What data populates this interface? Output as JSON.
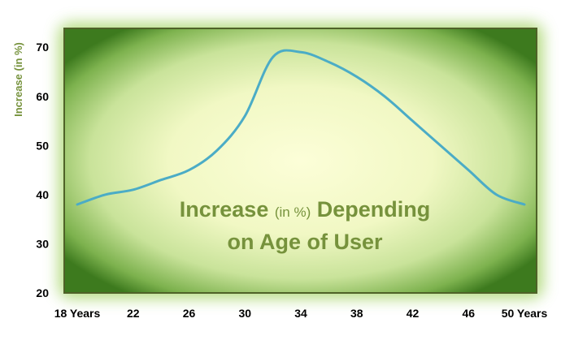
{
  "chart_data": {
    "type": "line",
    "title_parts": [
      "Increase ",
      "(in %)",
      " Depending",
      "on Age of User"
    ],
    "ylabel": "Increase (in %)",
    "xlabel": "",
    "ylim": [
      20,
      74
    ],
    "yticks": [
      20,
      30,
      40,
      50,
      60,
      70
    ],
    "xlim": [
      18,
      50
    ],
    "xticks": [
      {
        "x": 18,
        "label": "18 Years"
      },
      {
        "x": 22,
        "label": "22"
      },
      {
        "x": 26,
        "label": "26"
      },
      {
        "x": 30,
        "label": "30"
      },
      {
        "x": 34,
        "label": "34"
      },
      {
        "x": 38,
        "label": "38"
      },
      {
        "x": 42,
        "label": "42"
      },
      {
        "x": 46,
        "label": "46"
      },
      {
        "x": 50,
        "label": "50 Years"
      }
    ],
    "grid": false,
    "legend": "none",
    "series": [
      {
        "x": [
          18,
          20,
          22,
          24,
          26,
          28,
          30,
          32,
          34,
          36,
          38,
          40,
          42,
          44,
          46,
          48,
          50
        ],
        "values": [
          38,
          40,
          41,
          43,
          45,
          49,
          56,
          68,
          69,
          67,
          64,
          60,
          55,
          50,
          45,
          40,
          38
        ]
      }
    ],
    "colors": {
      "line": "#4bacc6",
      "label_text": "#76923c",
      "axis_text": "#000000",
      "plot_center": "#fcfed8",
      "plot_edge": "#3d7a1e",
      "frame": "#4f6228"
    }
  }
}
